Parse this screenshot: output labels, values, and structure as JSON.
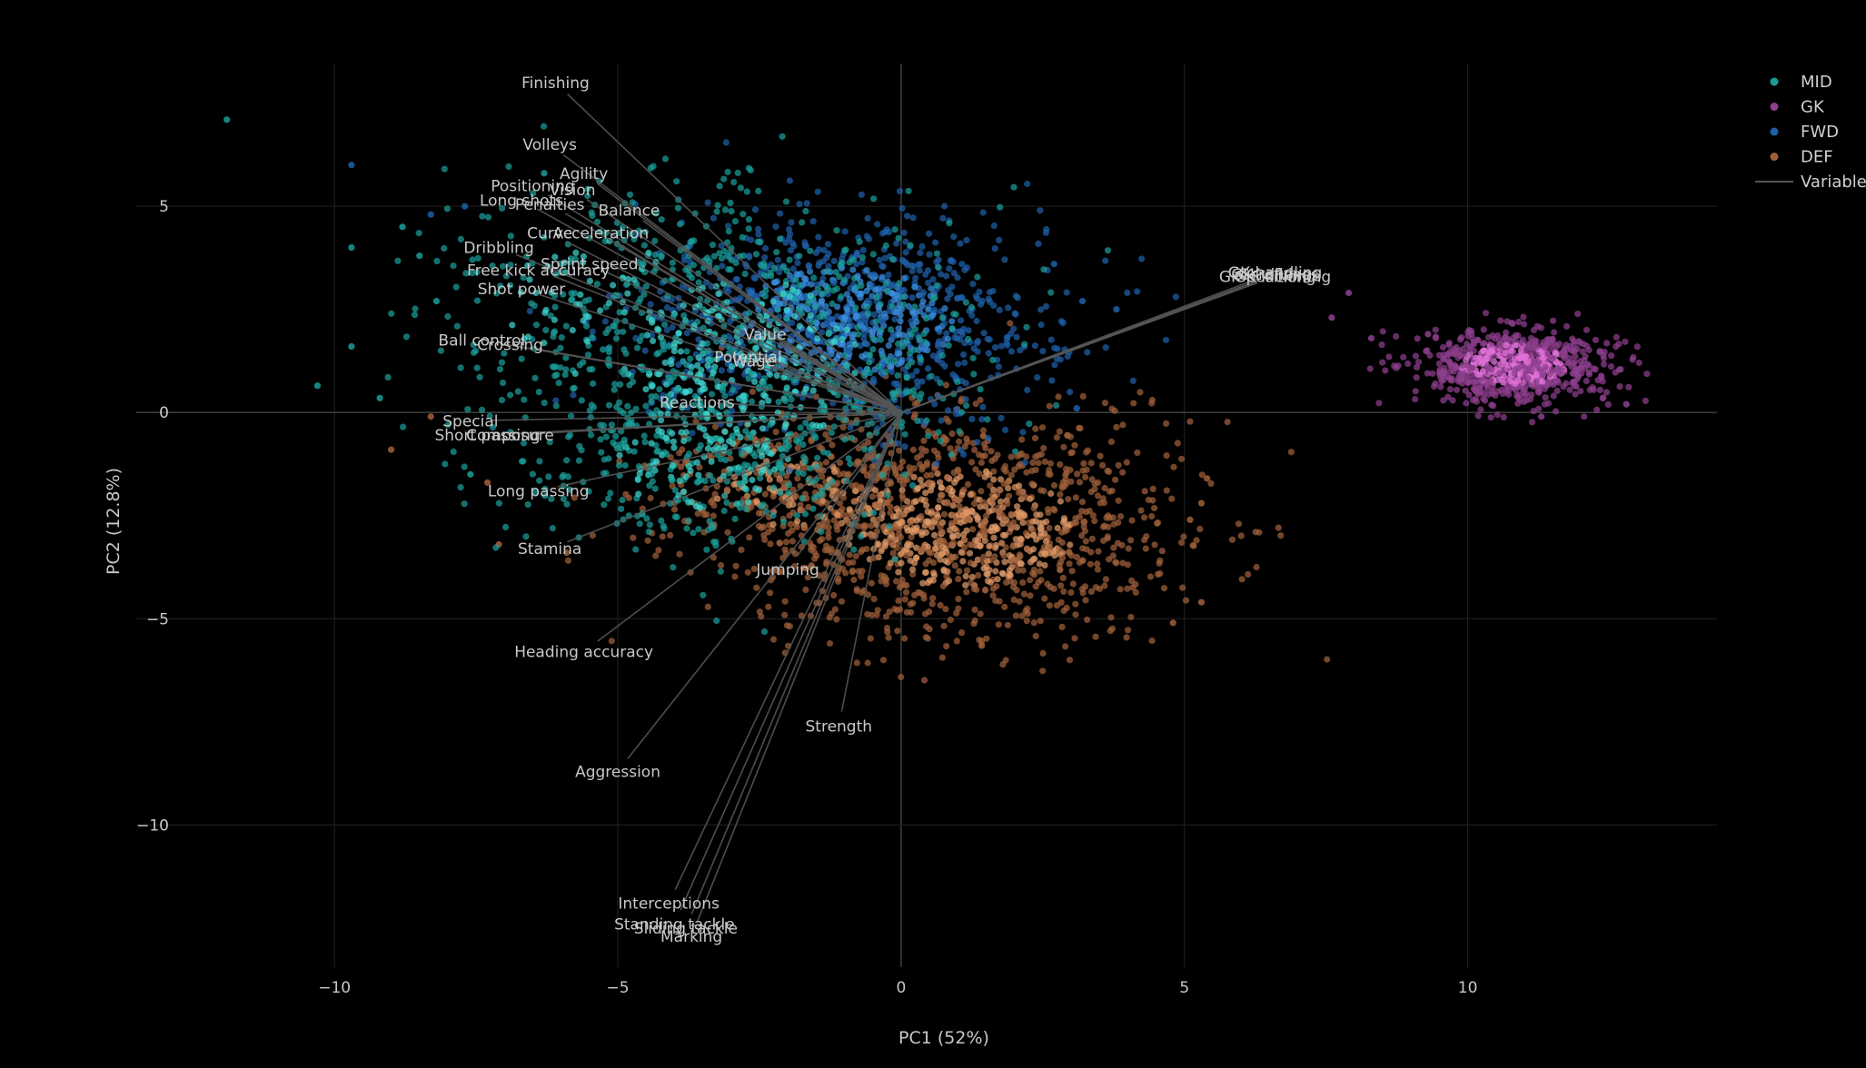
{
  "chart_data": {
    "type": "scatter",
    "title": "",
    "xlabel": "PC1 (52%)",
    "ylabel": "PC2 (12.8%)",
    "xlim": [
      -14.3,
      14.4
    ],
    "ylim": [
      -14.0,
      8.9
    ],
    "x_ticks": [
      -10,
      -5,
      0,
      5,
      10
    ],
    "x_tick_labels": [
      "−10",
      "−5",
      "0",
      "5",
      "10"
    ],
    "y_ticks": [
      -10,
      -5,
      0,
      5
    ],
    "y_tick_labels": [
      "−10",
      "−5",
      "0",
      "5"
    ],
    "grid": true,
    "legend_position": "top-right",
    "background": "#000000",
    "series": [
      {
        "name": "MID",
        "color": "#1a9e9a",
        "highlight": "#3fd6d0",
        "clusters": [
          {
            "cx": -2.8,
            "cy": 1.2,
            "sx": 1.9,
            "sy": 1.9,
            "n": 950
          },
          {
            "cx": -5.5,
            "cy": 2.6,
            "sx": 1.4,
            "sy": 1.6,
            "n": 160
          },
          {
            "cx": -3.5,
            "cy": -1.3,
            "sx": 1.4,
            "sy": 1.0,
            "n": 200
          }
        ],
        "outliers": [
          [
            -11.9,
            7.1
          ],
          [
            -9.7,
            4.0
          ],
          [
            -9.7,
            1.6
          ],
          [
            -10.3,
            0.65
          ],
          [
            -8.2,
            2.7
          ],
          [
            -8.8,
            4.5
          ],
          [
            -8.5,
            3.8
          ],
          [
            -9.2,
            0.35
          ],
          [
            -7.6,
            -1.5
          ],
          [
            -6.3,
            5.8
          ]
        ]
      },
      {
        "name": "GK",
        "color": "#8e3f8e",
        "highlight": "#e070d8",
        "clusters": [
          {
            "cx": 10.8,
            "cy": 1.15,
            "sx": 0.85,
            "sy": 0.45,
            "n": 700
          }
        ],
        "outliers": [
          [
            7.9,
            2.9
          ],
          [
            7.6,
            2.3
          ],
          [
            8.3,
            1.8
          ],
          [
            12.8,
            0.2
          ],
          [
            11.3,
            -0.1
          ],
          [
            9.3,
            1.9
          ]
        ]
      },
      {
        "name": "FWD",
        "color": "#1f5fa8",
        "highlight": "#3a8fe0",
        "clusters": [
          {
            "cx": -1.0,
            "cy": 2.2,
            "sx": 1.8,
            "sy": 1.2,
            "n": 1000
          }
        ],
        "outliers": [
          [
            -9.7,
            6.0
          ],
          [
            -8.3,
            4.8
          ],
          [
            -7.7,
            5.0
          ],
          [
            3.8,
            2.5
          ],
          [
            3.2,
            2.7
          ],
          [
            2.7,
            3.6
          ],
          [
            3.1,
            0.1
          ]
        ]
      },
      {
        "name": "DEF",
        "color": "#a0603a",
        "highlight": "#e09a68",
        "clusters": [
          {
            "cx": 1.0,
            "cy": -2.8,
            "sx": 1.9,
            "sy": 1.3,
            "n": 1300
          },
          {
            "cx": -2.0,
            "cy": -1.8,
            "sx": 1.3,
            "sy": 0.9,
            "n": 250
          }
        ],
        "outliers": [
          [
            -9.0,
            -0.9
          ],
          [
            -8.3,
            -0.1
          ],
          [
            -7.3,
            -1.7
          ],
          [
            -7.1,
            -3.2
          ],
          [
            -5.9,
            -3.4
          ],
          [
            5.4,
            -1.6
          ],
          [
            5.3,
            -2.2
          ],
          [
            5.3,
            -4.6
          ],
          [
            4.8,
            -5.1
          ],
          [
            5.1,
            -2.6
          ]
        ]
      }
    ],
    "variables": [
      {
        "name": "Finishing",
        "x": -6.1,
        "y": 8.0,
        "ax": "middle",
        "ay": -1
      },
      {
        "name": "Volleys",
        "x": -6.2,
        "y": 6.5,
        "ax": "middle",
        "ay": -1
      },
      {
        "name": "Agility",
        "x": -5.6,
        "y": 5.8,
        "ax": "middle",
        "ay": -1
      },
      {
        "name": "Positioning",
        "x": -6.5,
        "y": 5.5,
        "ax": "middle",
        "ay": -1
      },
      {
        "name": "Vision",
        "x": -5.8,
        "y": 5.4,
        "ax": "middle",
        "ay": -1
      },
      {
        "name": "Long shots",
        "x": -6.7,
        "y": 5.15,
        "ax": "middle",
        "ay": -1
      },
      {
        "name": "Penalties",
        "x": -6.2,
        "y": 5.05,
        "ax": "middle",
        "ay": -1
      },
      {
        "name": "Balance",
        "x": -4.8,
        "y": 4.9,
        "ax": "middle",
        "ay": -1
      },
      {
        "name": "Curve",
        "x": -6.2,
        "y": 4.35,
        "ax": "middle",
        "ay": -1
      },
      {
        "name": "Acceleration",
        "x": -5.3,
        "y": 4.35,
        "ax": "middle",
        "ay": -1
      },
      {
        "name": "Dribbling",
        "x": -7.1,
        "y": 4.0,
        "ax": "middle",
        "ay": -1
      },
      {
        "name": "Sprint speed",
        "x": -5.5,
        "y": 3.6,
        "ax": "middle",
        "ay": -1
      },
      {
        "name": "Free kick accuracy",
        "x": -6.4,
        "y": 3.45,
        "ax": "middle",
        "ay": -1
      },
      {
        "name": "Shot power",
        "x": -6.7,
        "y": 3.0,
        "ax": "middle",
        "ay": -1
      },
      {
        "name": "Value",
        "x": -2.4,
        "y": 1.9,
        "ax": "middle",
        "ay": -1
      },
      {
        "name": "Ball control",
        "x": -7.4,
        "y": 1.75,
        "ax": "middle",
        "ay": -1
      },
      {
        "name": "Crossing",
        "x": -6.9,
        "y": 1.65,
        "ax": "middle",
        "ay": -1
      },
      {
        "name": "Potential",
        "x": -2.7,
        "y": 1.35,
        "ax": "middle",
        "ay": -1
      },
      {
        "name": "Wage",
        "x": -2.6,
        "y": 1.25,
        "ax": "middle",
        "ay": -1
      },
      {
        "name": "Reactions",
        "x": -3.6,
        "y": 0.25,
        "ax": "middle",
        "ay": -1
      },
      {
        "name": "Special",
        "x": -7.6,
        "y": -0.2,
        "ax": "middle",
        "ay": -1
      },
      {
        "name": "Short passing",
        "x": -7.3,
        "y": -0.55,
        "ax": "middle",
        "ay": -1
      },
      {
        "name": "Composure",
        "x": -6.9,
        "y": -0.55,
        "ax": "middle",
        "ay": -1
      },
      {
        "name": "Long passing",
        "x": -6.4,
        "y": -1.9,
        "ax": "middle",
        "ay": -1
      },
      {
        "name": "Stamina",
        "x": -6.2,
        "y": -3.3,
        "ax": "middle",
        "ay": 1
      },
      {
        "name": "Jumping",
        "x": -2.0,
        "y": -3.8,
        "ax": "middle",
        "ay": 1
      },
      {
        "name": "Heading accuracy",
        "x": -5.6,
        "y": -5.8,
        "ax": "middle",
        "ay": 1
      },
      {
        "name": "Strength",
        "x": -1.1,
        "y": -7.6,
        "ax": "middle",
        "ay": 1
      },
      {
        "name": "Aggression",
        "x": -5.0,
        "y": -8.7,
        "ax": "middle",
        "ay": 1
      },
      {
        "name": "Interceptions",
        "x": -4.1,
        "y": -11.9,
        "ax": "middle",
        "ay": 1
      },
      {
        "name": "Standing tackle",
        "x": -4.0,
        "y": -12.4,
        "ax": "middle",
        "ay": 1
      },
      {
        "name": "Sliding tackle",
        "x": -3.8,
        "y": -12.5,
        "ax": "middle",
        "ay": 1
      },
      {
        "name": "Marking",
        "x": -3.7,
        "y": -12.7,
        "ax": "middle",
        "ay": 1
      },
      {
        "name": "GK positioning",
        "x": 6.6,
        "y": 3.3,
        "ax": "middle",
        "ay": -1
      },
      {
        "name": "GK diving",
        "x": 6.6,
        "y": 3.35,
        "ax": "middle",
        "ay": -1
      },
      {
        "name": "GK handling",
        "x": 6.6,
        "y": 3.4,
        "ax": "middle",
        "ay": -1
      },
      {
        "name": "GK kicking",
        "x": 6.6,
        "y": 3.3,
        "ax": "middle",
        "ay": -1
      },
      {
        "name": "GK reflexes",
        "x": 6.6,
        "y": 3.35,
        "ax": "middle",
        "ay": -1
      }
    ],
    "variables_legend": "Variables",
    "variables_color": "#555555"
  }
}
